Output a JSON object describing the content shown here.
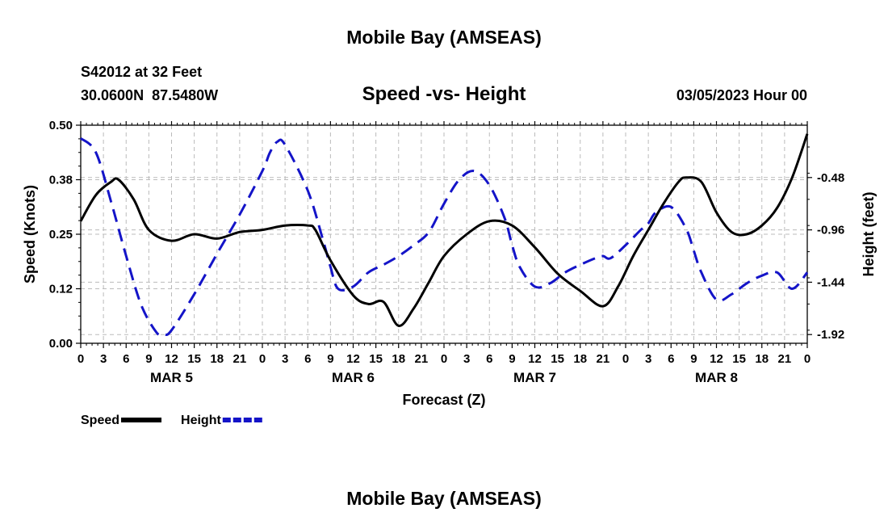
{
  "header": {
    "title": "Mobile Bay (AMSEAS)",
    "station": "S42012 at 32 Feet",
    "coords": "30.0600N  87.5480W",
    "subtitle": "Speed -vs- Height",
    "datetime": "03/05/2023 Hour 00",
    "footer_title": "Mobile Bay (AMSEAS)"
  },
  "chart_data": {
    "type": "line",
    "title": "Speed -vs- Height",
    "xlabel": "Forecast (Z)",
    "ylabel_left": "Speed (Knots)",
    "ylabel_right": "Height (feet)",
    "x_range_hours": [
      0,
      96
    ],
    "x_tick_labels": [
      "0",
      "3",
      "6",
      "9",
      "12",
      "15",
      "18",
      "21",
      "0",
      "3",
      "6",
      "9",
      "12",
      "15",
      "18",
      "21",
      "0",
      "3",
      "6",
      "9",
      "12",
      "15",
      "18",
      "21",
      "0",
      "3",
      "6",
      "9",
      "12",
      "15",
      "18",
      "21",
      "0"
    ],
    "day_labels": [
      {
        "label": "MAR 5",
        "hour": 12
      },
      {
        "label": "MAR 6",
        "hour": 36
      },
      {
        "label": "MAR 7",
        "hour": 60
      },
      {
        "label": "MAR 8",
        "hour": 84
      }
    ],
    "y_left": {
      "range": [
        0,
        0.5
      ],
      "ticks": [
        "0.00",
        "0.12",
        "0.25",
        "0.38",
        "0.50"
      ]
    },
    "y_right": {
      "range": [
        -2.0,
        0.0
      ],
      "ticks": [
        "-0.48",
        "-0.96",
        "-1.44",
        "-1.92"
      ],
      "tick_values": [
        -0.48,
        -0.96,
        -1.44,
        -1.92
      ]
    },
    "grid": true,
    "legend_position": "bottom-left",
    "series": [
      {
        "name": "Speed",
        "axis": "left",
        "color": "#000000",
        "style": "solid",
        "x": [
          0,
          2,
          4,
          5,
          7,
          9,
          12,
          15,
          18,
          21,
          24,
          27,
          30,
          31,
          33,
          36,
          38,
          40,
          42,
          44,
          46,
          48,
          51,
          54,
          57,
          60,
          63,
          66,
          69,
          71,
          73,
          75,
          77,
          79,
          80,
          82,
          84,
          86,
          88,
          90,
          92,
          94,
          96
        ],
        "values": [
          0.28,
          0.34,
          0.37,
          0.375,
          0.33,
          0.26,
          0.235,
          0.25,
          0.24,
          0.255,
          0.26,
          0.27,
          0.27,
          0.26,
          0.19,
          0.11,
          0.09,
          0.095,
          0.04,
          0.08,
          0.14,
          0.2,
          0.25,
          0.28,
          0.27,
          0.22,
          0.16,
          0.12,
          0.085,
          0.13,
          0.2,
          0.26,
          0.32,
          0.37,
          0.38,
          0.37,
          0.3,
          0.255,
          0.25,
          0.27,
          0.31,
          0.38,
          0.48
        ]
      },
      {
        "name": "Height",
        "axis": "right",
        "color": "#1414c8",
        "style": "dashed",
        "x": [
          0,
          2,
          4,
          6,
          8,
          10,
          11,
          12,
          15,
          18,
          21,
          24,
          25,
          26,
          27,
          30,
          32,
          33,
          34,
          36,
          38,
          40,
          42,
          44,
          46,
          48,
          50,
          52,
          54,
          56,
          57,
          58,
          60,
          62,
          64,
          66,
          68,
          69,
          70,
          72,
          74,
          75,
          76,
          78,
          80,
          81,
          82,
          84,
          86,
          88,
          90,
          92,
          94,
          96
        ],
        "values": [
          -0.12,
          -0.25,
          -0.7,
          -1.2,
          -1.65,
          -1.9,
          -1.92,
          -1.88,
          -1.55,
          -1.18,
          -0.82,
          -0.42,
          -0.25,
          -0.15,
          -0.18,
          -0.6,
          -1.05,
          -1.3,
          -1.5,
          -1.48,
          -1.35,
          -1.28,
          -1.2,
          -1.1,
          -0.98,
          -0.72,
          -0.5,
          -0.42,
          -0.55,
          -0.85,
          -1.1,
          -1.3,
          -1.48,
          -1.45,
          -1.35,
          -1.28,
          -1.22,
          -1.2,
          -1.22,
          -1.1,
          -0.96,
          -0.9,
          -0.8,
          -0.75,
          -0.95,
          -1.15,
          -1.35,
          -1.6,
          -1.55,
          -1.45,
          -1.38,
          -1.35,
          -1.5,
          -1.35
        ]
      }
    ]
  }
}
